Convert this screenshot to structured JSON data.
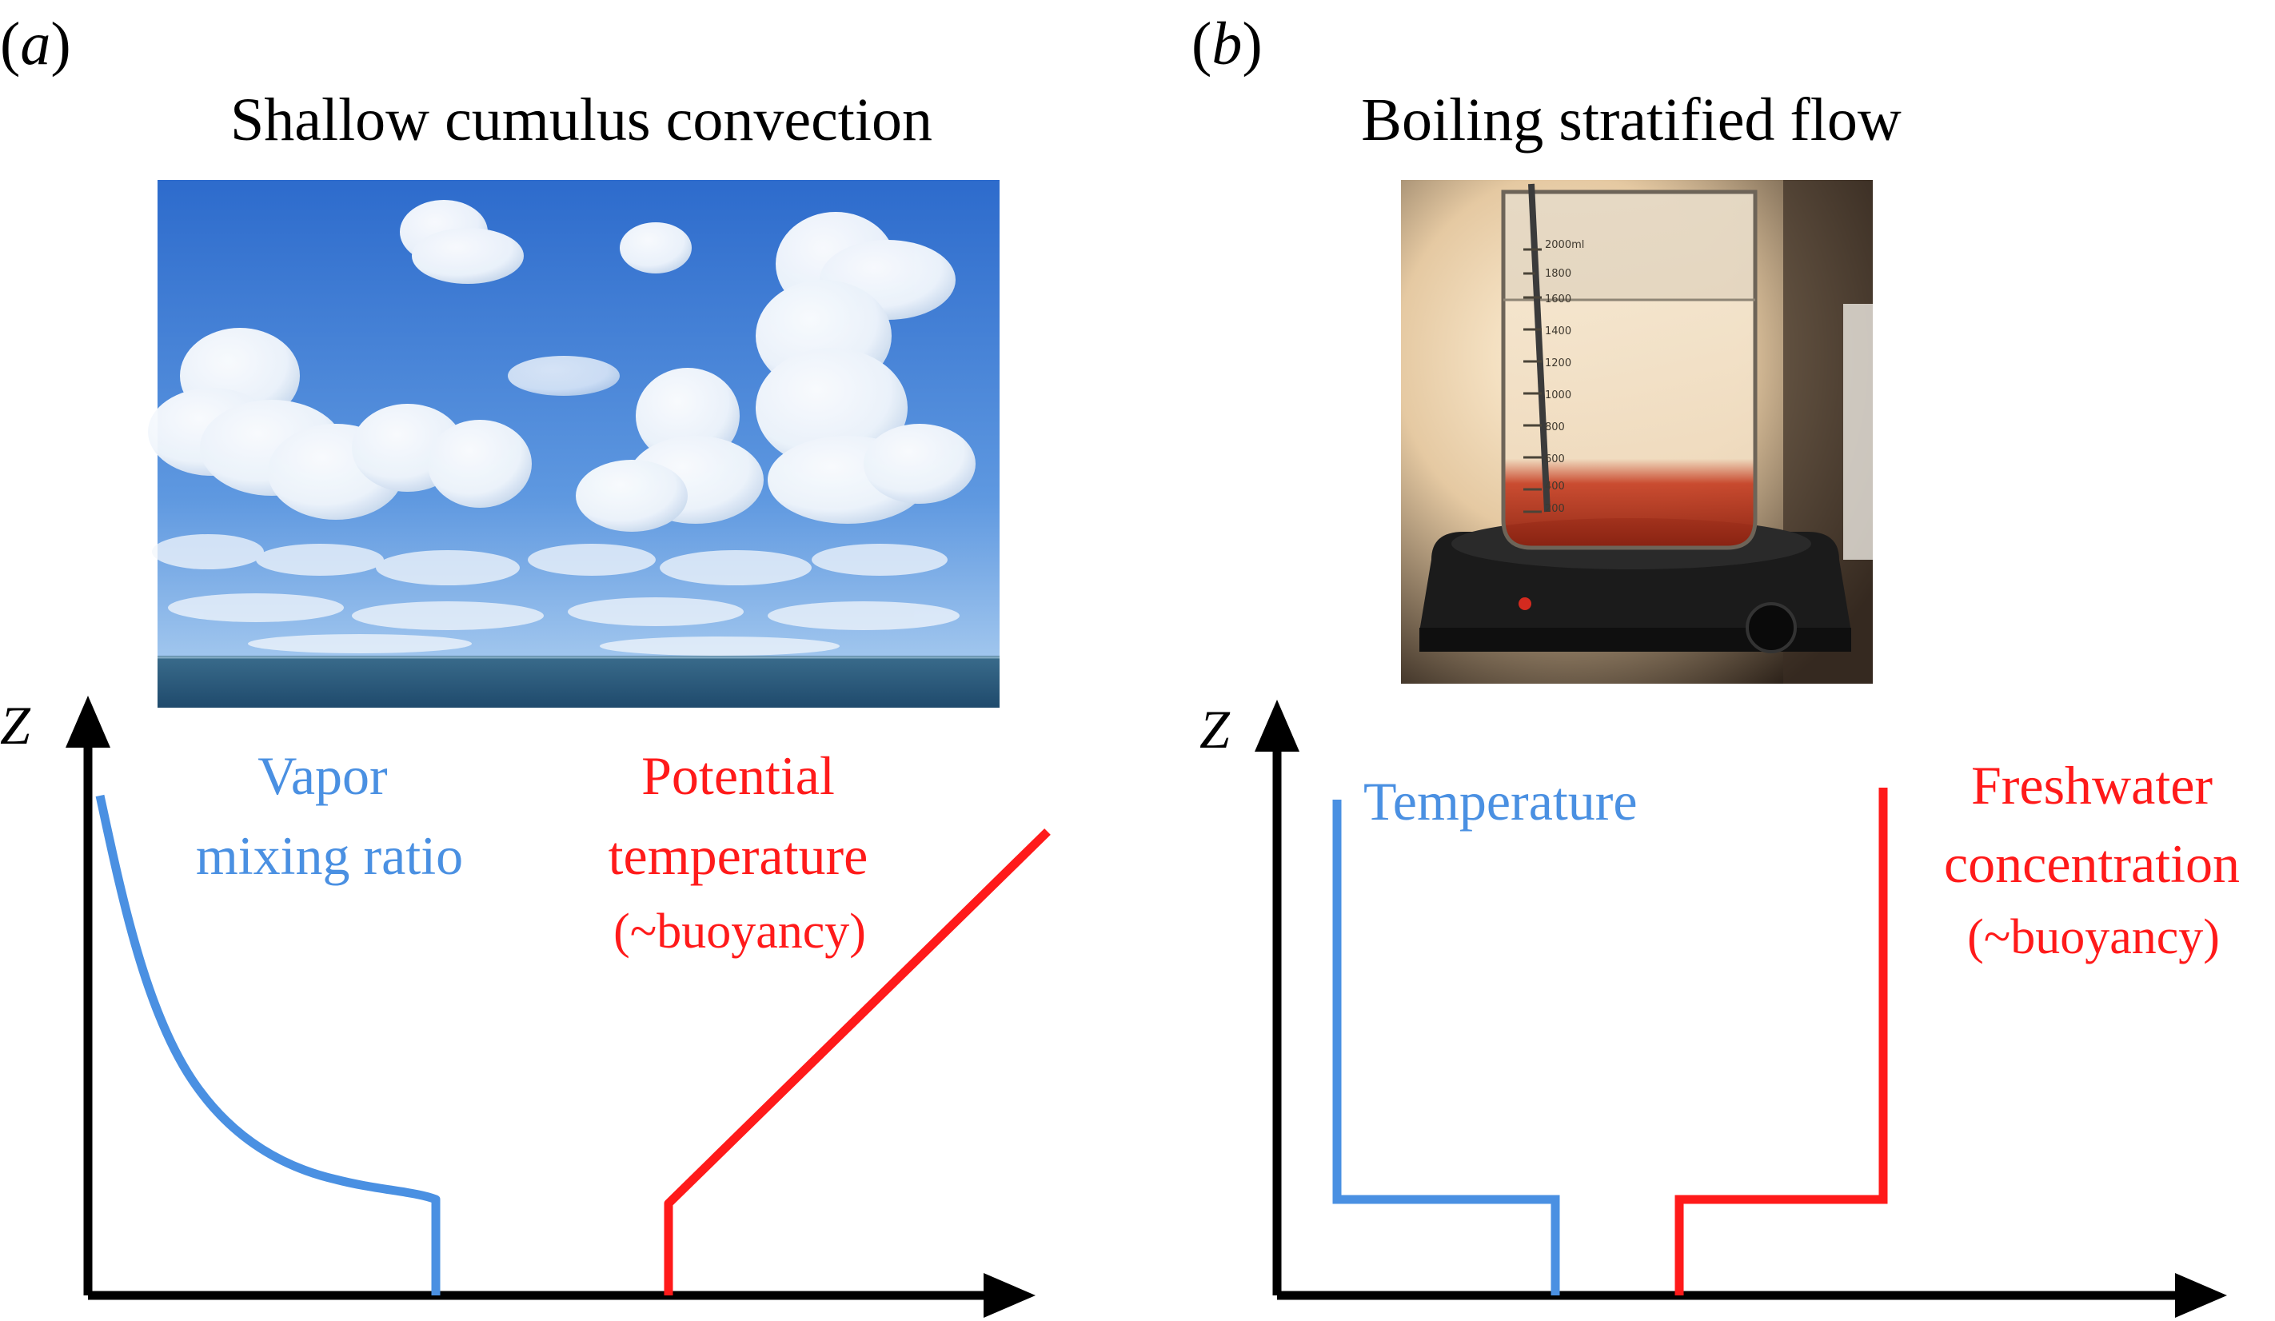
{
  "panel_a": {
    "letter": "a",
    "title": "Shallow cumulus convection",
    "axis_label": "Z",
    "blue_label_lines": [
      "Vapor",
      "mixing ratio"
    ],
    "red_label_lines": [
      "Potential",
      "temperature",
      "(~buoyancy)"
    ]
  },
  "panel_b": {
    "letter": "b",
    "title": "Boiling stratified flow",
    "axis_label": "Z",
    "blue_label": "Temperature",
    "red_label_lines": [
      "Freshwater",
      "concentration",
      "(~buoyancy)"
    ],
    "beaker_markings": [
      "2000ml",
      "1800",
      "1600",
      "1400",
      "1200",
      "1000",
      "800",
      "600",
      "400",
      "200"
    ]
  },
  "colors": {
    "blue_curve": "#4a90e2",
    "red_curve": "#ff1a1a",
    "axes": "#000000",
    "sky_top": "#2f6fd0",
    "sky_bottom": "#a9cdf2",
    "sea": "#2c5f83",
    "beaker_red": "#b0321c"
  }
}
